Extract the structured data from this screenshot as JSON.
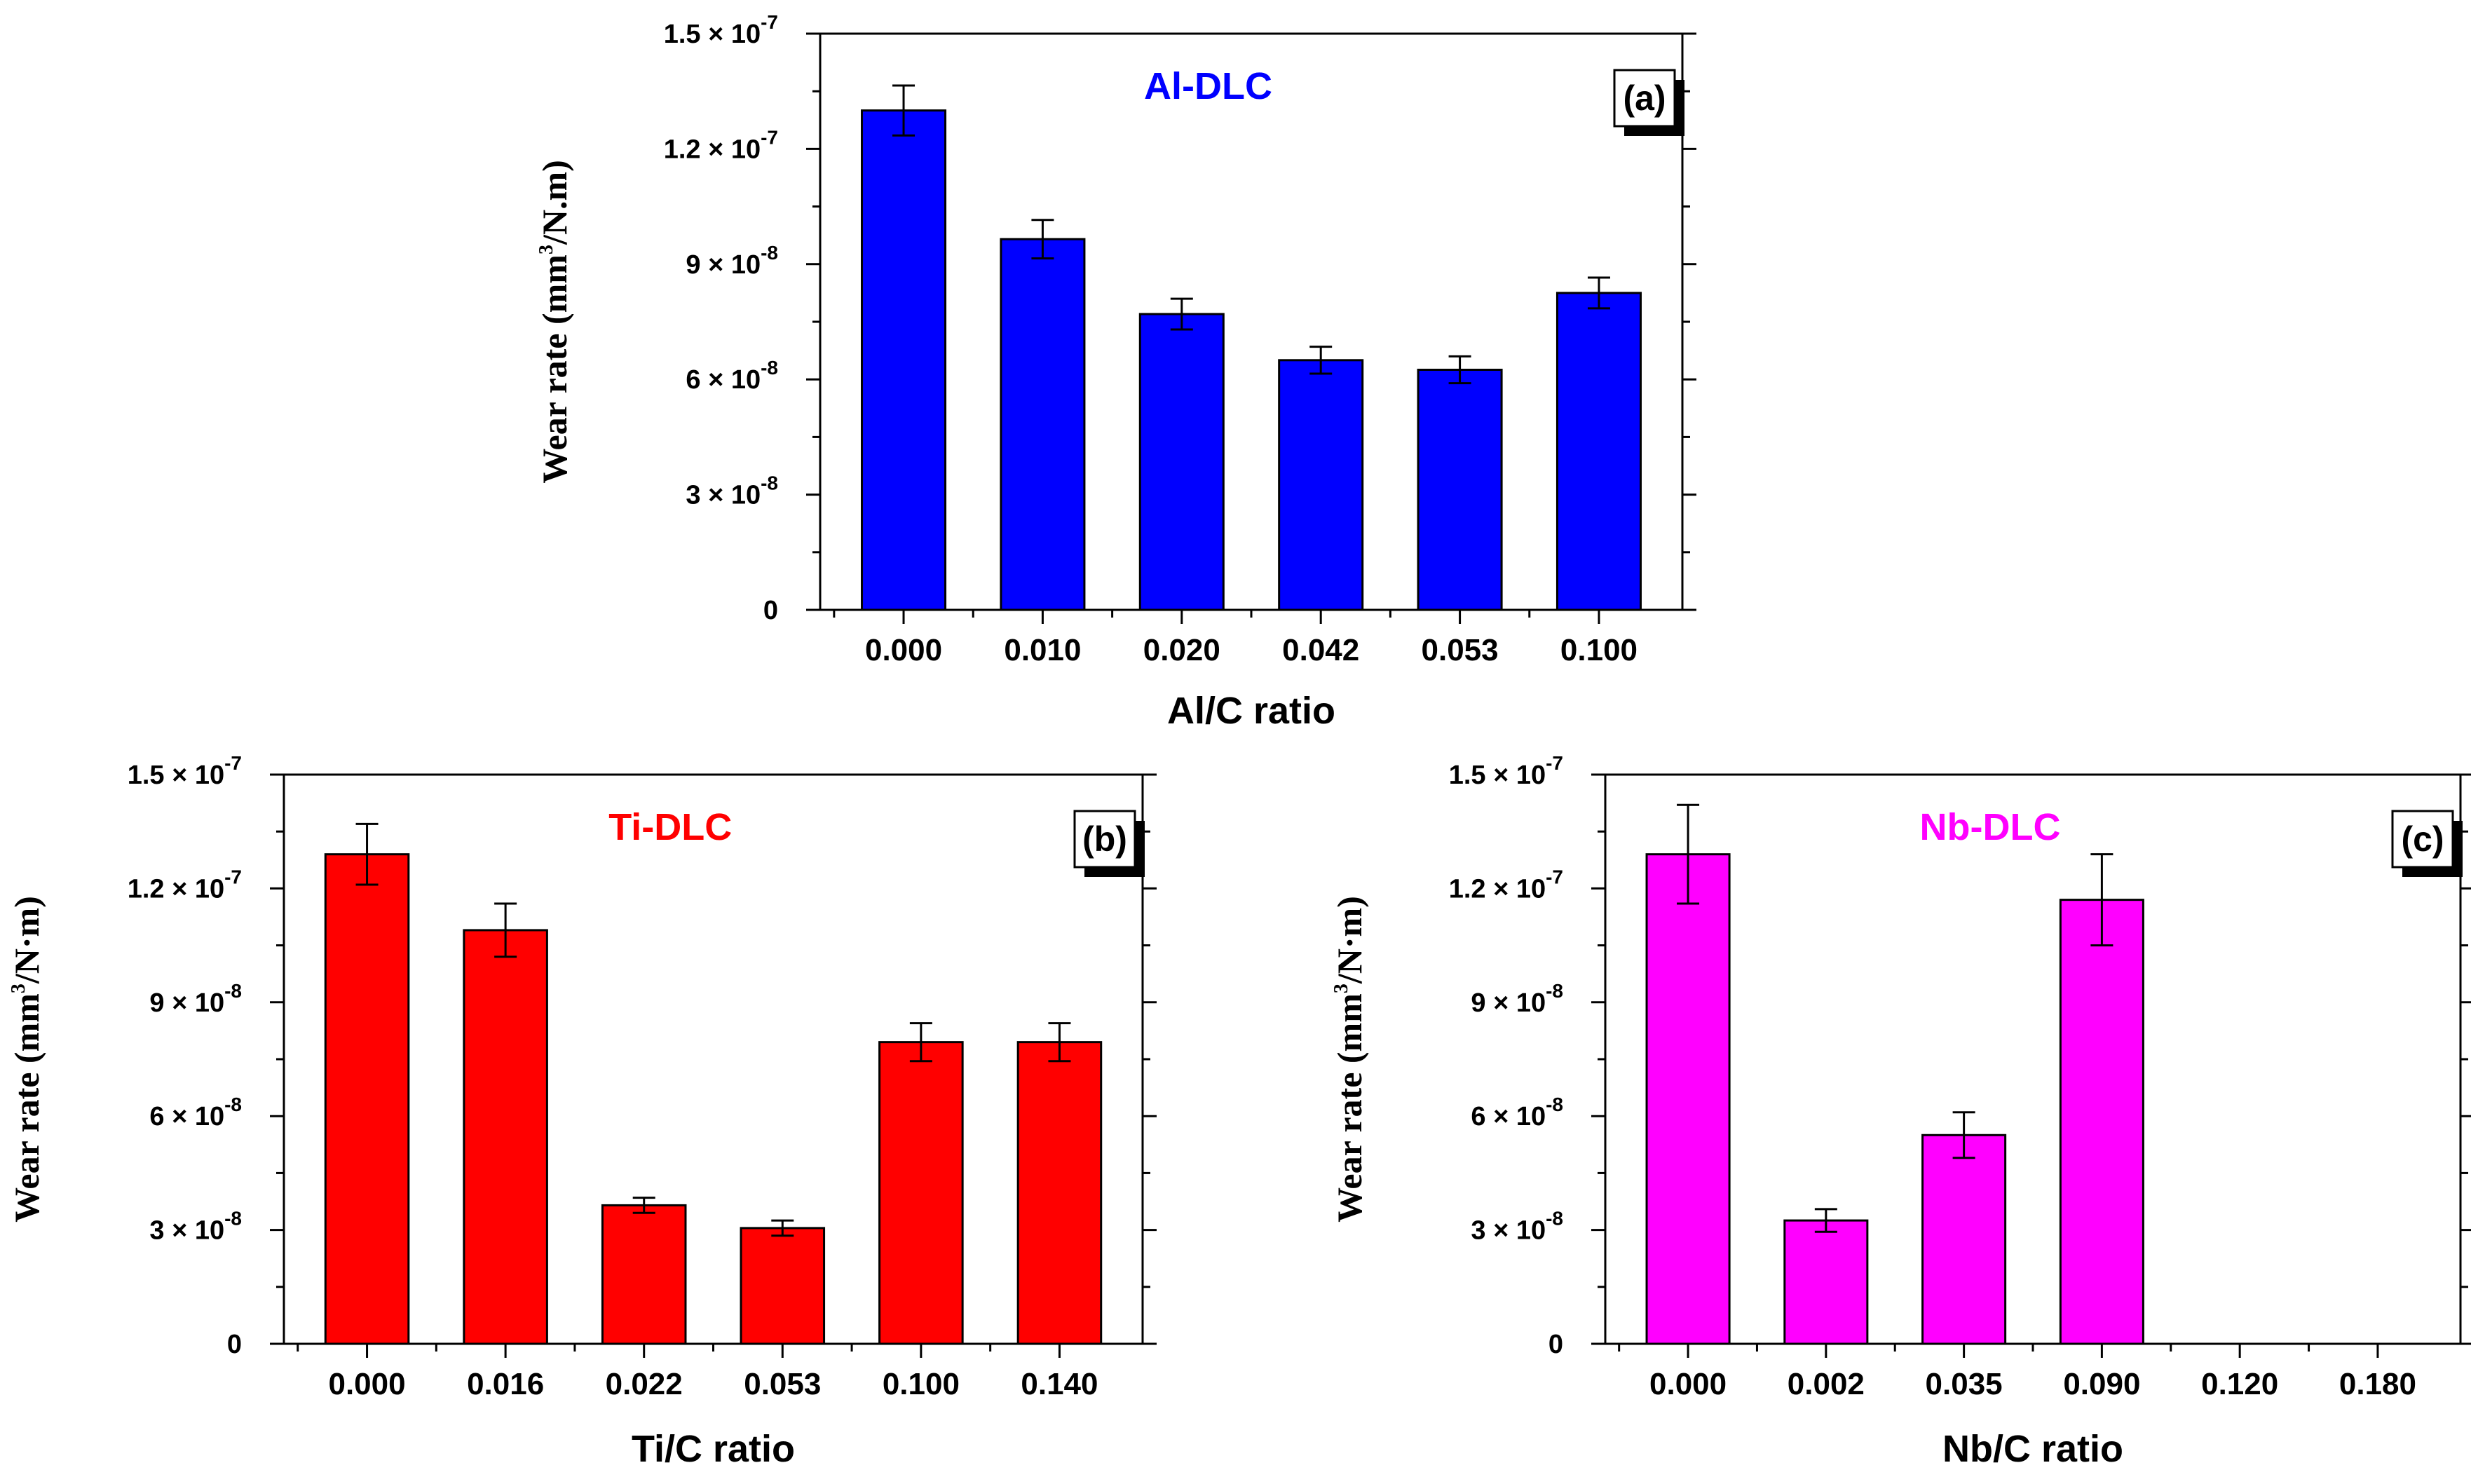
{
  "chart_data": [
    {
      "type": "bar",
      "panel_label": "(a)",
      "title": "Al-DLC",
      "title_color": "#0000FF",
      "bar_color": "#0000FF",
      "xlabel": "Al/C ratio",
      "ylabel": "Wear rate (mm3/N.m)",
      "ylabel_parts": {
        "pre": "Wear rate (mm",
        "sup": "3",
        "post": "/N.m)"
      },
      "ylim": [
        0,
        1.5e-07
      ],
      "yticks": [
        0,
        3e-08,
        6e-08,
        9e-08,
        1.2e-07,
        1.5e-07
      ],
      "ytick_labels": [
        {
          "mant": "0",
          "exp": ""
        },
        {
          "mant": "3 × 10",
          "exp": "-8"
        },
        {
          "mant": "6 × 10",
          "exp": "-8"
        },
        {
          "mant": "9 × 10",
          "exp": "-8"
        },
        {
          "mant": "1.2 × 10",
          "exp": "-7"
        },
        {
          "mant": "1.5 × 10",
          "exp": "-7"
        }
      ],
      "categories": [
        "0.000",
        "0.010",
        "0.020",
        "0.042",
        "0.053",
        "0.100"
      ],
      "values": [
        1.3e-07,
        9.65e-08,
        7.7e-08,
        6.5e-08,
        6.25e-08,
        8.25e-08
      ],
      "errors": [
        6.5e-09,
        5e-09,
        4e-09,
        3.5e-09,
        3.5e-09,
        4e-09
      ]
    },
    {
      "type": "bar",
      "panel_label": "(b)",
      "title": "Ti-DLC",
      "title_color": "#FF0000",
      "bar_color": "#FF0000",
      "xlabel": "Ti/C ratio",
      "ylabel": "Wear rate (mm3/N·m)",
      "ylabel_parts": {
        "pre": "Wear rate (mm",
        "sup": "3",
        "post": "/N·m)"
      },
      "ylim": [
        0,
        1.5e-07
      ],
      "yticks": [
        0,
        3e-08,
        6e-08,
        9e-08,
        1.2e-07,
        1.5e-07
      ],
      "ytick_labels": [
        {
          "mant": "0",
          "exp": ""
        },
        {
          "mant": "3 × 10",
          "exp": "-8"
        },
        {
          "mant": "6 × 10",
          "exp": "-8"
        },
        {
          "mant": "9 × 10",
          "exp": "-8"
        },
        {
          "mant": "1.2 × 10",
          "exp": "-7"
        },
        {
          "mant": "1.5 × 10",
          "exp": "-7"
        }
      ],
      "categories": [
        "0.000",
        "0.016",
        "0.022",
        "0.053",
        "0.100",
        "0.140"
      ],
      "values": [
        1.29e-07,
        1.09e-07,
        3.65e-08,
        3.05e-08,
        7.95e-08,
        7.95e-08
      ],
      "errors": [
        8e-09,
        7e-09,
        2e-09,
        2e-09,
        5e-09,
        5e-09
      ]
    },
    {
      "type": "bar",
      "panel_label": "(c)",
      "title": "Nb-DLC",
      "title_color": "#FF00FF",
      "bar_color": "#FF00FF",
      "xlabel": "Nb/C ratio",
      "ylabel": "Wear rate (mm3/N·m)",
      "ylabel_parts": {
        "pre": "Wear rate (mm",
        "sup": "3",
        "post": "/N·m)"
      },
      "ylim": [
        0,
        1.5e-07
      ],
      "yticks": [
        0,
        3e-08,
        6e-08,
        9e-08,
        1.2e-07,
        1.5e-07
      ],
      "ytick_labels": [
        {
          "mant": "0",
          "exp": ""
        },
        {
          "mant": "3 × 10",
          "exp": "-8"
        },
        {
          "mant": "6 × 10",
          "exp": "-8"
        },
        {
          "mant": "9 × 10",
          "exp": "-8"
        },
        {
          "mant": "1.2 × 10",
          "exp": "-7"
        },
        {
          "mant": "1.5 × 10",
          "exp": "-7"
        }
      ],
      "categories": [
        "0.000",
        "0.002",
        "0.035",
        "0.090",
        "0.120",
        "0.180"
      ],
      "values": [
        1.29e-07,
        3.25e-08,
        5.5e-08,
        1.17e-07,
        null,
        null
      ],
      "errors": [
        1.3e-08,
        3e-09,
        6e-09,
        1.2e-08,
        null,
        null
      ]
    }
  ]
}
